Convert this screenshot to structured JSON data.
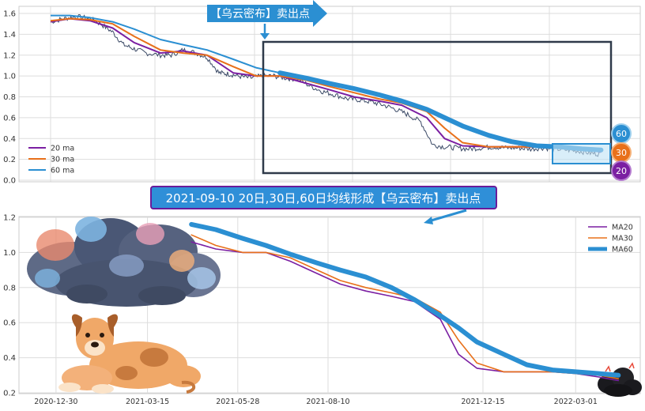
{
  "colors": {
    "ma20": "#7b1fa2",
    "ma30": "#e8701a",
    "ma60": "#2b8fd2",
    "price": "#3b4a66",
    "grid": "#dddddd",
    "banner_fill": "#2b8fd2",
    "callout_fill": "#2f8fd8",
    "callout_border": "#6a1b9a",
    "box": "#2f3a4a"
  },
  "top": {
    "banner": "【乌云密布】卖出点",
    "badges": {
      "b60": "60",
      "b30": "30",
      "b20": "20"
    }
  },
  "callout": "2021-09-10 20日,30日,60日均线形成【乌云密布】卖出点",
  "chart_data": [
    {
      "type": "line",
      "title": "",
      "xlabel": "",
      "ylabel": "",
      "x_range": [
        "2020-12-30",
        "2022-04-10"
      ],
      "ylim": [
        0,
        1.65
      ],
      "y_ticks": [
        "0.0",
        "0.2",
        "0.4",
        "0.6",
        "0.8",
        "1.0",
        "1.2",
        "1.4",
        "1.6"
      ],
      "y_tick_values": [
        0,
        0.2,
        0.4,
        0.6,
        0.8,
        1.0,
        1.2,
        1.4,
        1.6
      ],
      "grid": true,
      "legend": "lower-left",
      "price_dates": [
        "2020-12-30",
        "2021-01-10",
        "2021-01-20",
        "2021-02-01",
        "2021-02-10",
        "2021-02-20",
        "2021-03-01",
        "2021-03-10",
        "2021-03-20",
        "2021-04-01",
        "2021-04-10",
        "2021-04-20",
        "2021-05-01",
        "2021-05-10",
        "2021-05-20",
        "2021-05-28",
        "2021-06-05",
        "2021-06-15",
        "2021-06-25",
        "2021-07-05",
        "2021-07-15",
        "2021-07-25",
        "2021-08-05",
        "2021-08-15",
        "2021-08-25",
        "2021-09-05",
        "2021-09-15",
        "2021-09-25",
        "2021-10-05",
        "2021-10-15",
        "2021-10-25",
        "2021-11-05",
        "2021-11-15",
        "2021-11-25",
        "2021-12-05",
        "2021-12-15",
        "2021-12-25",
        "2022-01-05",
        "2022-01-15",
        "2022-01-25",
        "2022-02-05",
        "2022-02-15",
        "2022-02-25",
        "2022-03-07",
        "2022-03-17",
        "2022-03-27",
        "2022-04-05"
      ],
      "price_values": [
        1.52,
        1.55,
        1.57,
        1.55,
        1.5,
        1.42,
        1.3,
        1.26,
        1.22,
        1.2,
        1.2,
        1.25,
        1.22,
        1.18,
        1.03,
        1.02,
        1.0,
        0.98,
        1.0,
        1.0,
        0.98,
        0.97,
        0.9,
        0.85,
        0.82,
        0.78,
        0.77,
        0.75,
        0.72,
        0.68,
        0.63,
        0.56,
        0.34,
        0.32,
        0.31,
        0.3,
        0.31,
        0.32,
        0.31,
        0.31,
        0.3,
        0.31,
        0.3,
        0.29,
        0.28,
        0.26,
        0.25
      ],
      "series": [
        {
          "name": "20 ma",
          "x": [
            "2020-12-30",
            "2021-01-15",
            "2021-02-01",
            "2021-02-20",
            "2021-03-10",
            "2021-04-01",
            "2021-04-20",
            "2021-05-10",
            "2021-06-01",
            "2021-06-20",
            "2021-07-10",
            "2021-08-01",
            "2021-08-20",
            "2021-09-10",
            "2021-10-01",
            "2021-10-20",
            "2021-11-10",
            "2021-11-25",
            "2021-12-10",
            "2022-01-01",
            "2022-01-20",
            "2022-02-10",
            "2022-03-01",
            "2022-03-20",
            "2022-04-05"
          ],
          "y": [
            1.52,
            1.55,
            1.53,
            1.46,
            1.32,
            1.22,
            1.24,
            1.2,
            1.03,
            1.0,
            1.0,
            0.93,
            0.87,
            0.8,
            0.76,
            0.72,
            0.6,
            0.4,
            0.33,
            0.32,
            0.32,
            0.32,
            0.31,
            0.3,
            0.27
          ]
        },
        {
          "name": "30 ma",
          "x": [
            "2020-12-30",
            "2021-01-15",
            "2021-02-01",
            "2021-02-20",
            "2021-03-10",
            "2021-04-01",
            "2021-04-20",
            "2021-05-10",
            "2021-06-01",
            "2021-06-20",
            "2021-07-10",
            "2021-08-01",
            "2021-08-20",
            "2021-09-10",
            "2021-10-01",
            "2021-10-20",
            "2021-11-10",
            "2021-11-25",
            "2021-12-10",
            "2022-01-01",
            "2022-01-20",
            "2022-02-10",
            "2022-03-01",
            "2022-03-20",
            "2022-04-05"
          ],
          "y": [
            1.53,
            1.55,
            1.54,
            1.5,
            1.38,
            1.25,
            1.22,
            1.2,
            1.09,
            1.0,
            1.0,
            0.96,
            0.9,
            0.84,
            0.78,
            0.74,
            0.66,
            0.5,
            0.36,
            0.32,
            0.32,
            0.32,
            0.31,
            0.3,
            0.28
          ]
        },
        {
          "name": "60 ma",
          "x": [
            "2020-12-30",
            "2021-01-15",
            "2021-02-01",
            "2021-02-20",
            "2021-03-10",
            "2021-04-01",
            "2021-04-20",
            "2021-05-10",
            "2021-06-01",
            "2021-06-20",
            "2021-07-10",
            "2021-08-01",
            "2021-08-20",
            "2021-09-10",
            "2021-10-01",
            "2021-10-20",
            "2021-11-10",
            "2021-11-25",
            "2021-12-10",
            "2022-01-01",
            "2022-01-20",
            "2022-02-10",
            "2022-03-01",
            "2022-03-20",
            "2022-04-05"
          ],
          "y": [
            1.58,
            1.58,
            1.56,
            1.52,
            1.45,
            1.35,
            1.3,
            1.25,
            1.16,
            1.08,
            1.03,
            0.98,
            0.93,
            0.88,
            0.82,
            0.76,
            0.68,
            0.6,
            0.52,
            0.43,
            0.37,
            0.33,
            0.32,
            0.3,
            0.29
          ]
        }
      ]
    },
    {
      "type": "line",
      "title": "",
      "xlabel": "",
      "ylabel": "",
      "x_range": [
        "2020-12-10",
        "2022-04-10"
      ],
      "ylim": [
        0.2,
        1.2
      ],
      "y_ticks": [
        "0.2",
        "0.4",
        "0.6",
        "0.8",
        "1.0",
        "1.2"
      ],
      "y_tick_values": [
        0.2,
        0.4,
        0.6,
        0.8,
        1.0,
        1.2
      ],
      "x_ticks": [
        "2020-12-30",
        "2021-03-15",
        "2021-05-28",
        "2021-08-10",
        "2021-12-15",
        "2022-03-01"
      ],
      "grid": true,
      "legend": "top-right",
      "series": [
        {
          "name": "MA20",
          "x": [
            "2021-04-20",
            "2021-05-10",
            "2021-06-01",
            "2021-06-20",
            "2021-07-10",
            "2021-08-01",
            "2021-08-20",
            "2021-09-10",
            "2021-10-01",
            "2021-10-20",
            "2021-11-10",
            "2021-11-25",
            "2021-12-10",
            "2022-01-01",
            "2022-01-20",
            "2022-02-10",
            "2022-03-01",
            "2022-03-20",
            "2022-04-05"
          ],
          "y": [
            1.06,
            1.02,
            1.0,
            1.0,
            0.95,
            0.88,
            0.82,
            0.78,
            0.75,
            0.72,
            0.62,
            0.42,
            0.34,
            0.32,
            0.32,
            0.32,
            0.31,
            0.29,
            0.27
          ]
        },
        {
          "name": "MA30",
          "x": [
            "2021-04-20",
            "2021-05-10",
            "2021-06-01",
            "2021-06-20",
            "2021-07-10",
            "2021-08-01",
            "2021-08-20",
            "2021-09-10",
            "2021-10-01",
            "2021-10-20",
            "2021-11-10",
            "2021-11-25",
            "2021-12-10",
            "2022-01-01",
            "2022-01-20",
            "2022-02-10",
            "2022-03-01",
            "2022-03-20",
            "2022-04-05"
          ],
          "y": [
            1.1,
            1.04,
            1.0,
            1.0,
            0.97,
            0.9,
            0.84,
            0.8,
            0.77,
            0.74,
            0.66,
            0.5,
            0.37,
            0.32,
            0.32,
            0.32,
            0.31,
            0.3,
            0.28
          ]
        },
        {
          "name": "MA60",
          "x": [
            "2021-04-20",
            "2021-05-10",
            "2021-06-01",
            "2021-06-20",
            "2021-07-10",
            "2021-08-01",
            "2021-08-20",
            "2021-09-10",
            "2021-10-01",
            "2021-10-20",
            "2021-11-10",
            "2021-11-25",
            "2021-12-10",
            "2022-01-01",
            "2022-01-20",
            "2022-02-10",
            "2022-03-01",
            "2022-03-20",
            "2022-04-05"
          ],
          "y": [
            1.16,
            1.13,
            1.08,
            1.04,
            0.99,
            0.94,
            0.9,
            0.86,
            0.8,
            0.73,
            0.64,
            0.57,
            0.49,
            0.42,
            0.36,
            0.33,
            0.32,
            0.31,
            0.3
          ]
        }
      ]
    }
  ]
}
